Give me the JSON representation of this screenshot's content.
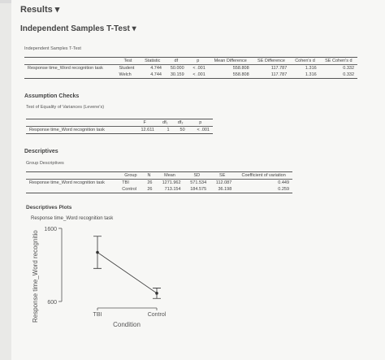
{
  "header": {
    "title": "Results ▾",
    "analysis": "Independent Samples T-Test ▾"
  },
  "ttest": {
    "caption": "Independent Samples T-Test",
    "headers": [
      "Test",
      "Statistic",
      "df",
      "p",
      "Mean Difference",
      "SE Difference",
      "Cohen's d",
      "SE Cohen's d"
    ],
    "variable": "Response time_Word recognition task",
    "rows": [
      [
        "Student",
        "4.744",
        "50.000",
        "< .001",
        "558.808",
        "117.787",
        "1.316",
        "0.332"
      ],
      [
        "Welch",
        "4.744",
        "30.159",
        "< .001",
        "558.808",
        "117.787",
        "1.316",
        "0.332"
      ]
    ]
  },
  "assumptions": {
    "title": "Assumption Checks",
    "caption": "Test of Equality of Variances (Levene's)",
    "headers": [
      "F",
      "df₁",
      "df₂",
      "p"
    ],
    "variable": "Response time_Word recognition task",
    "rows": [
      [
        "12.611",
        "1",
        "50",
        "< .001"
      ]
    ]
  },
  "descriptives": {
    "title": "Descriptives",
    "caption": "Group Descriptives",
    "headers": [
      "Group",
      "N",
      "Mean",
      "SD",
      "SE",
      "Coefficient of variation"
    ],
    "variable": "Response time_Word recognition task",
    "rows": [
      [
        "TBI",
        "26",
        "1271.962",
        "571.534",
        "112.087",
        "0.449"
      ],
      [
        "Control",
        "26",
        "713.154",
        "184.575",
        "36.198",
        "0.259"
      ]
    ]
  },
  "plot": {
    "title": "Descriptives Plots",
    "subtitle": "Response time_Word recognition task",
    "y_label": "Response time_Word recognitio",
    "x_label": "Condition",
    "categories": [
      "TBI",
      "Control"
    ],
    "values": [
      1271.962,
      713.154
    ],
    "ci": [
      [
        1052,
        1492
      ],
      [
        642,
        784
      ]
    ],
    "ylim": [
      600,
      1600
    ],
    "yticks": [
      600,
      1600
    ]
  }
}
